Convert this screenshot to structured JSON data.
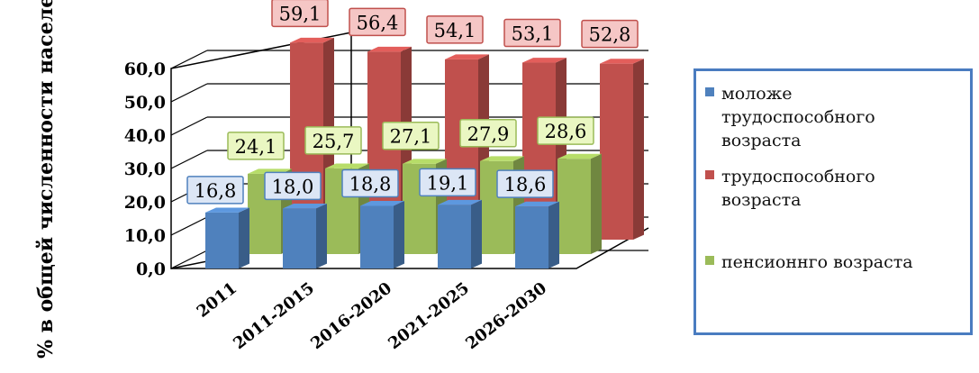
{
  "chart_data": {
    "type": "bar",
    "categories": [
      "2011",
      "2011-2015",
      "2016-2020",
      "2021-2025",
      "2026-2030"
    ],
    "series": [
      {
        "name": "моложе трудоспособного возраста",
        "values": [
          16.8,
          18.0,
          18.8,
          19.1,
          18.6
        ],
        "labels": [
          "16,8",
          "18,0",
          "18,8",
          "19,1",
          "18,6"
        ],
        "color": "#4f81bd"
      },
      {
        "name": "трудоспособного возраста",
        "values": [
          59.1,
          56.4,
          54.1,
          53.1,
          52.8
        ],
        "labels": [
          "59,1",
          "56,4",
          "54,1",
          "53,1",
          "52,8"
        ],
        "color": "#c0504d"
      },
      {
        "name": "пенсионнго возраста",
        "values": [
          24.1,
          25.7,
          27.1,
          27.9,
          28.6
        ],
        "labels": [
          "24,1",
          "25,7",
          "27,1",
          "27,9",
          "28,6"
        ],
        "color": "#9bbb59"
      }
    ],
    "ylabel": "% в общей численности населения",
    "yticks": [
      "0,0",
      "10,0",
      "20,0",
      "30,0",
      "40,0",
      "50,0",
      "60,0"
    ],
    "ylim": [
      0,
      60
    ],
    "grid": true,
    "legend_position": "right",
    "three_d": true
  },
  "legend": {
    "items": [
      {
        "lines": [
          "моложе",
          "трудоспособного",
          "возраста"
        ],
        "color": "#4f81bd"
      },
      {
        "lines": [
          "трудоспособного",
          "возраста"
        ],
        "color": "#c0504d"
      },
      {
        "lines": [
          "пенсионнго возраста"
        ],
        "color": "#9bbb59"
      }
    ]
  }
}
